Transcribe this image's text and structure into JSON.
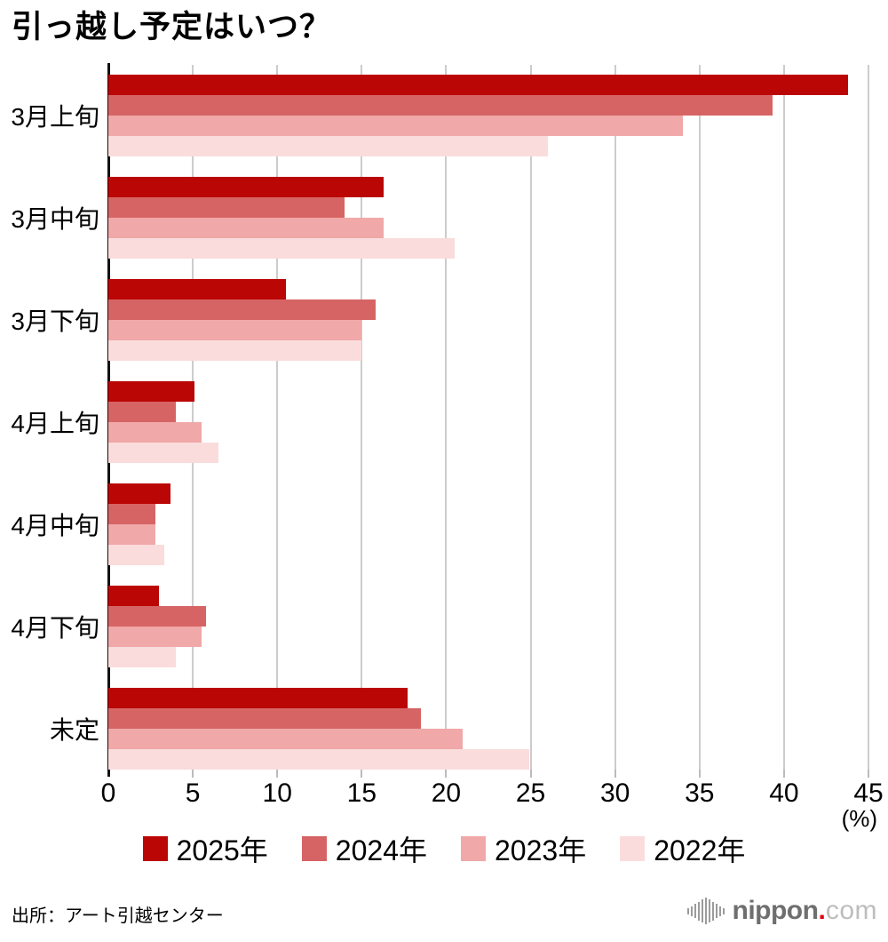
{
  "title": "引っ越し予定はいつ？",
  "source": "出所：アート引越センター",
  "logo": {
    "name": "nippon",
    "dot": ".",
    "tld": "com"
  },
  "axis": {
    "unit": "(%)",
    "ticks": [
      0,
      5,
      10,
      15,
      20,
      25,
      30,
      35,
      40,
      45
    ]
  },
  "colors": {
    "grid": "#cccccc",
    "axis": "#111111",
    "accent_red": "#e60012"
  },
  "legend": [
    {
      "label": "2025年",
      "color": "#bb0606"
    },
    {
      "label": "2024年",
      "color": "#d66464"
    },
    {
      "label": "2023年",
      "color": "#f0a8a8"
    },
    {
      "label": "2022年",
      "color": "#fadcdc"
    }
  ],
  "chart_data": {
    "type": "bar",
    "orientation": "horizontal",
    "title": "引っ越し予定はいつ？",
    "xlabel": "(%)",
    "ylabel": "",
    "xlim": [
      0,
      45
    ],
    "grid": true,
    "legend_position": "bottom",
    "categories": [
      "3月上旬",
      "3月中旬",
      "3月下旬",
      "4月上旬",
      "4月中旬",
      "4月下旬",
      "未定"
    ],
    "series": [
      {
        "name": "2025年",
        "color": "#bb0606",
        "values": [
          43.8,
          16.3,
          10.5,
          5.1,
          3.7,
          3.0,
          17.7
        ]
      },
      {
        "name": "2024年",
        "color": "#d66464",
        "values": [
          39.3,
          14.0,
          15.8,
          4.0,
          2.8,
          5.8,
          18.5
        ]
      },
      {
        "name": "2023年",
        "color": "#f0a8a8",
        "values": [
          34.0,
          16.3,
          15.0,
          5.5,
          2.8,
          5.5,
          21.0
        ]
      },
      {
        "name": "2022年",
        "color": "#fadcdc",
        "values": [
          26.0,
          20.5,
          15.0,
          6.5,
          3.3,
          4.0,
          24.9
        ]
      }
    ]
  }
}
